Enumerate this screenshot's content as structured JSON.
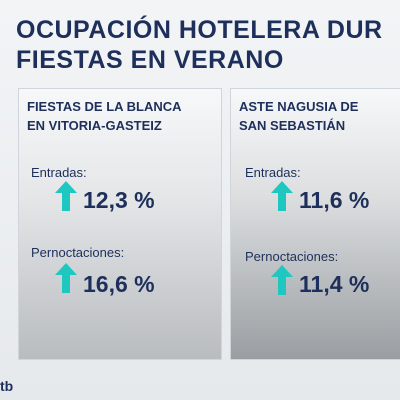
{
  "header": {
    "title_lines": [
      "OCUPACIÓN HOTELERA DUR",
      "FIESTAS EN VERANO"
    ]
  },
  "panels": [
    {
      "title_lines": [
        "FIESTAS DE LA BLANCA",
        "EN VITORIA-GASTEIZ"
      ],
      "metrics": [
        {
          "label": "Entradas:",
          "value": "12,3 %"
        },
        {
          "label": "Pernoctaciones:",
          "value": "16,6 %"
        }
      ]
    },
    {
      "title_lines": [
        "ASTE NAGUSIA DE",
        "SAN SEBASTIÁN"
      ],
      "metrics": [
        {
          "label": "Entradas:",
          "value": "11,6 %"
        },
        {
          "label": "Pernoctaciones:",
          "value": "11,4 %"
        }
      ]
    }
  ],
  "footer": {
    "logo": "tb"
  }
}
